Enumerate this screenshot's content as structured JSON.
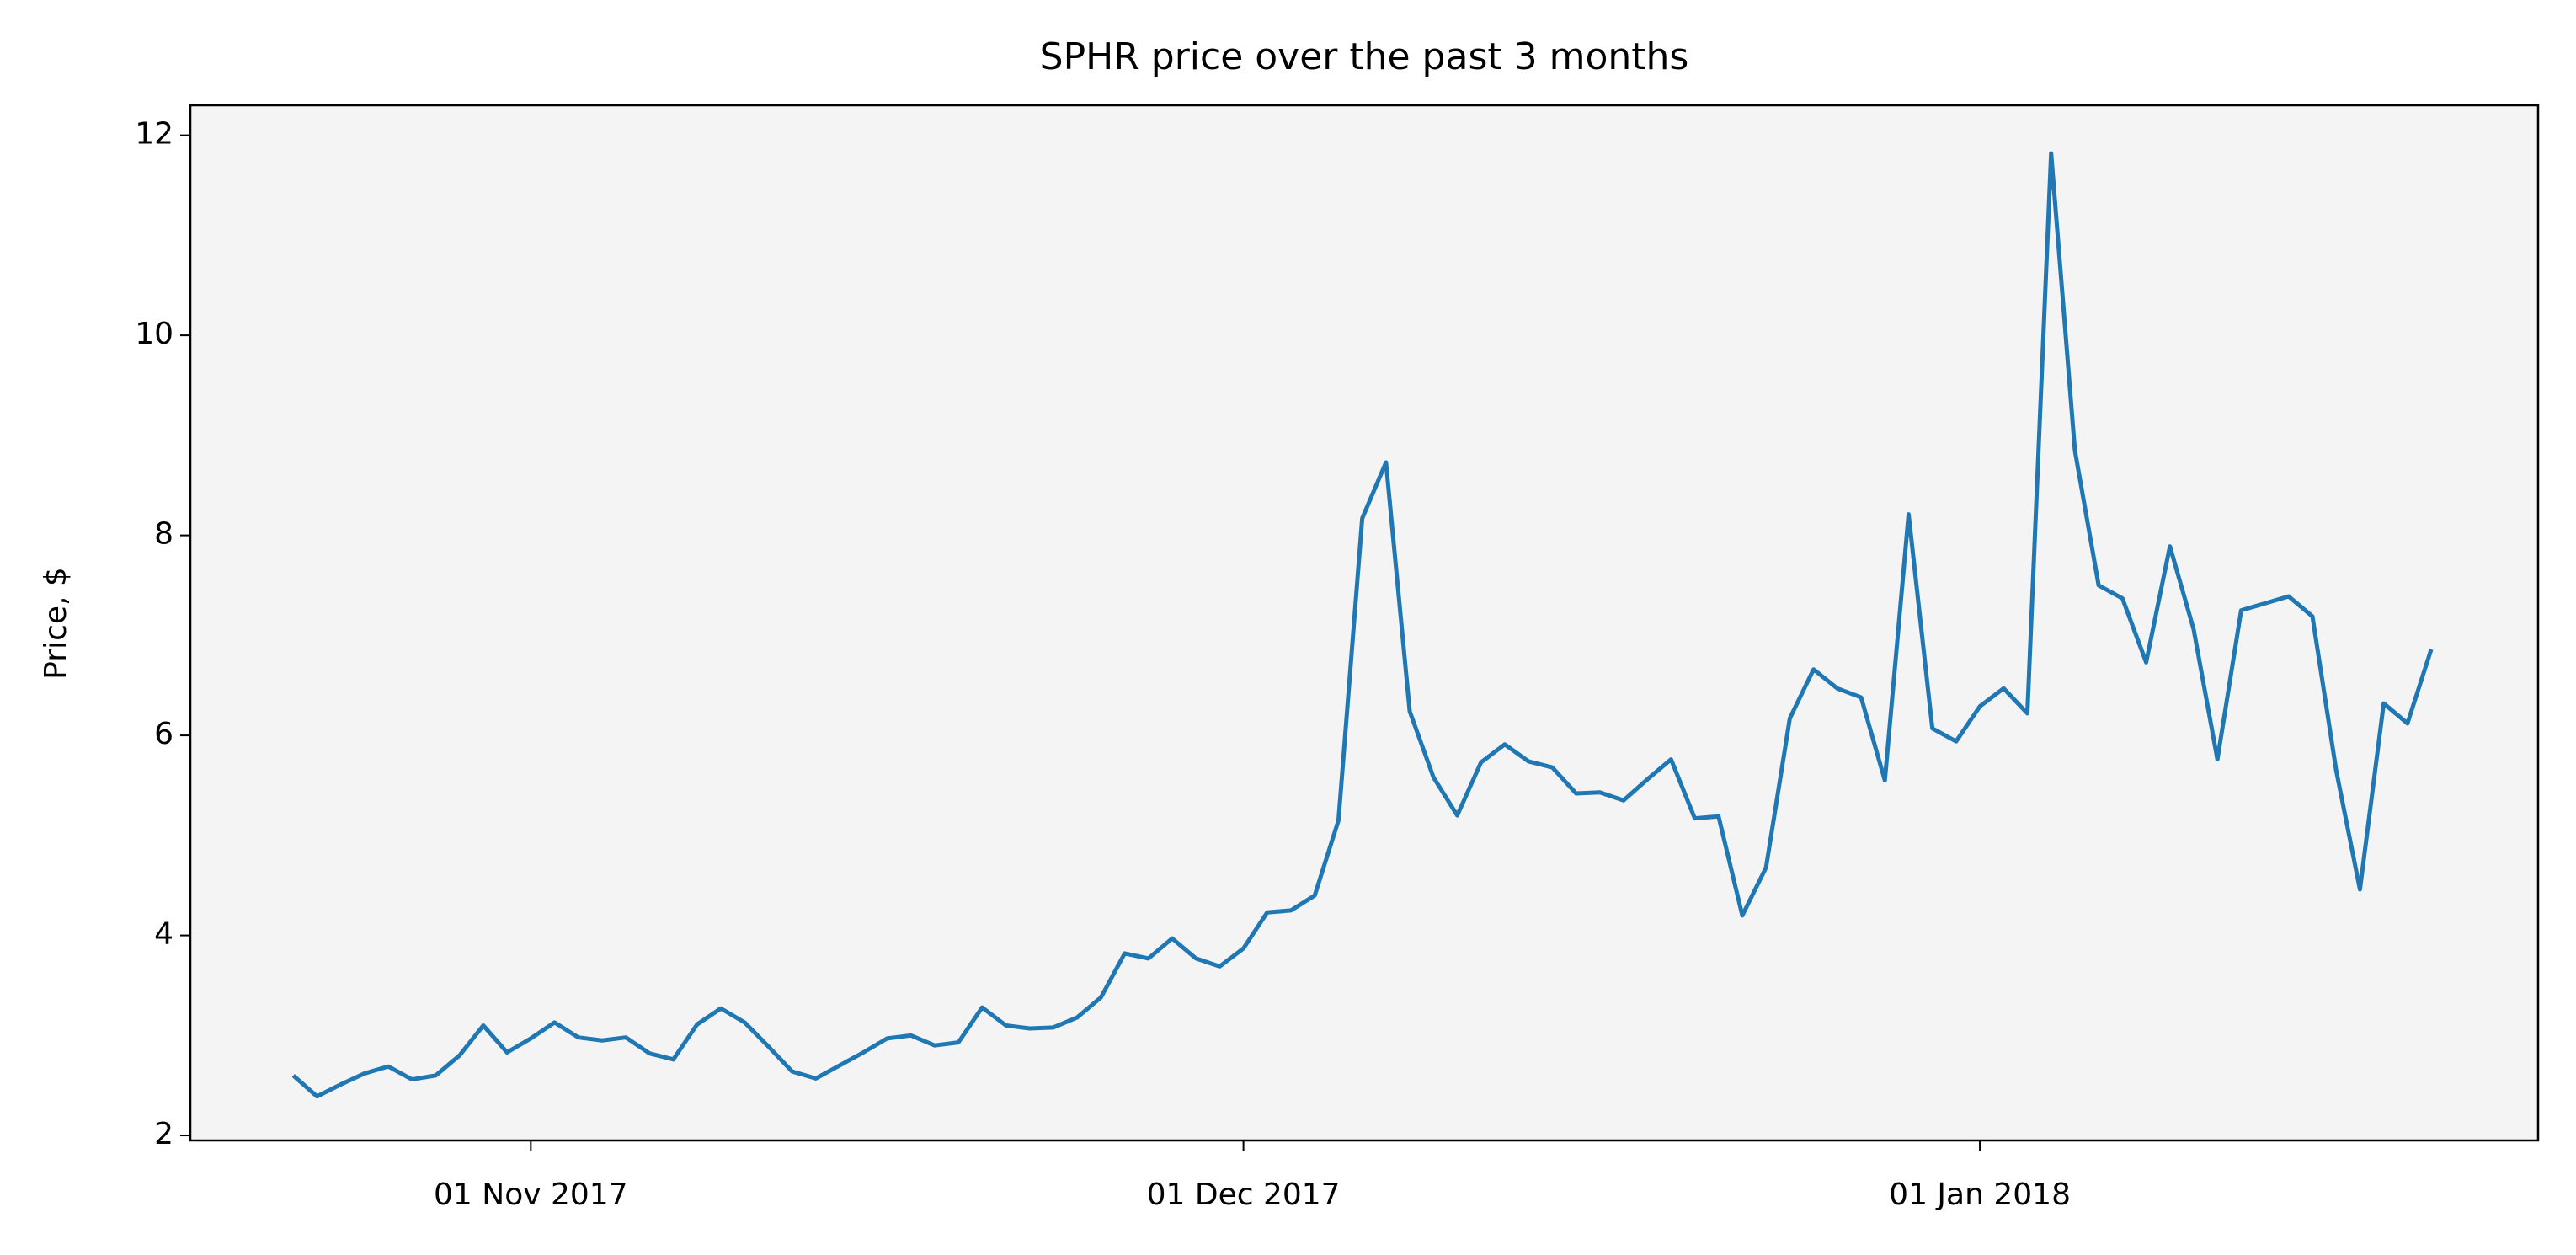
{
  "chart_data": {
    "type": "line",
    "title": "SPHR price over the past 3 months",
    "y_label": "Price, $",
    "color": "#1f77b4",
    "x": [
      "2017-10-22",
      "2017-10-23",
      "2017-10-24",
      "2017-10-25",
      "2017-10-26",
      "2017-10-27",
      "2017-10-28",
      "2017-10-29",
      "2017-10-30",
      "2017-10-31",
      "2017-11-01",
      "2017-11-02",
      "2017-11-03",
      "2017-11-04",
      "2017-11-05",
      "2017-11-06",
      "2017-11-07",
      "2017-11-08",
      "2017-11-09",
      "2017-11-10",
      "2017-11-11",
      "2017-11-12",
      "2017-11-13",
      "2017-11-14",
      "2017-11-15",
      "2017-11-16",
      "2017-11-17",
      "2017-11-18",
      "2017-11-19",
      "2017-11-20",
      "2017-11-21",
      "2017-11-22",
      "2017-11-23",
      "2017-11-24",
      "2017-11-25",
      "2017-11-26",
      "2017-11-27",
      "2017-11-28",
      "2017-11-29",
      "2017-11-30",
      "2017-12-01",
      "2017-12-02",
      "2017-12-03",
      "2017-12-04",
      "2017-12-05",
      "2017-12-06",
      "2017-12-07",
      "2017-12-08",
      "2017-12-09",
      "2017-12-10",
      "2017-12-11",
      "2017-12-12",
      "2017-12-13",
      "2017-12-14",
      "2017-12-15",
      "2017-12-16",
      "2017-12-17",
      "2017-12-18",
      "2017-12-19",
      "2017-12-20",
      "2017-12-21",
      "2017-12-22",
      "2017-12-23",
      "2017-12-24",
      "2017-12-25",
      "2017-12-26",
      "2017-12-27",
      "2017-12-28",
      "2017-12-29",
      "2017-12-30",
      "2017-12-31",
      "2018-01-01",
      "2018-01-02",
      "2018-01-03",
      "2018-01-04",
      "2018-01-05",
      "2018-01-06",
      "2018-01-07",
      "2018-01-08",
      "2018-01-09",
      "2018-01-10",
      "2018-01-11",
      "2018-01-12",
      "2018-01-13",
      "2018-01-14",
      "2018-01-15",
      "2018-01-16",
      "2018-01-17",
      "2018-01-18",
      "2018-01-19",
      "2018-01-20"
    ],
    "values": [
      2.6,
      2.39,
      2.51,
      2.62,
      2.69,
      2.56,
      2.6,
      2.8,
      3.1,
      2.83,
      2.97,
      3.13,
      2.98,
      2.95,
      2.98,
      2.82,
      2.76,
      3.11,
      3.27,
      3.13,
      2.89,
      2.64,
      2.57,
      2.7,
      2.83,
      2.97,
      3.0,
      2.9,
      2.93,
      3.28,
      3.1,
      3.07,
      3.08,
      3.18,
      3.38,
      3.82,
      3.77,
      3.97,
      3.77,
      3.69,
      3.87,
      4.23,
      4.25,
      4.4,
      5.15,
      8.17,
      8.73,
      6.24,
      5.58,
      5.2,
      5.73,
      5.91,
      5.74,
      5.68,
      5.42,
      5.43,
      5.35,
      5.56,
      5.76,
      5.17,
      5.19,
      4.2,
      4.68,
      6.17,
      6.66,
      6.47,
      6.38,
      5.55,
      8.21,
      6.07,
      5.94,
      6.29,
      6.47,
      6.22,
      11.82,
      8.85,
      7.5,
      7.37,
      6.73,
      7.89,
      7.06,
      5.76,
      7.25,
      7.32,
      7.39,
      7.19,
      5.65,
      4.46,
      6.32,
      6.12,
      6.86
    ],
    "xlim": [
      "2017-10-17T16:00",
      "2018-01-24T12:00"
    ],
    "xticks": [
      {
        "value": "2017-11-01",
        "label": "01 Nov 2017"
      },
      {
        "value": "2017-12-01",
        "label": "01 Dec 2017"
      },
      {
        "value": "2018-01-01",
        "label": "01 Jan 2018"
      }
    ],
    "ylim": [
      1.95,
      12.3
    ],
    "yticks": [
      2,
      4,
      6,
      8,
      10,
      12
    ]
  }
}
